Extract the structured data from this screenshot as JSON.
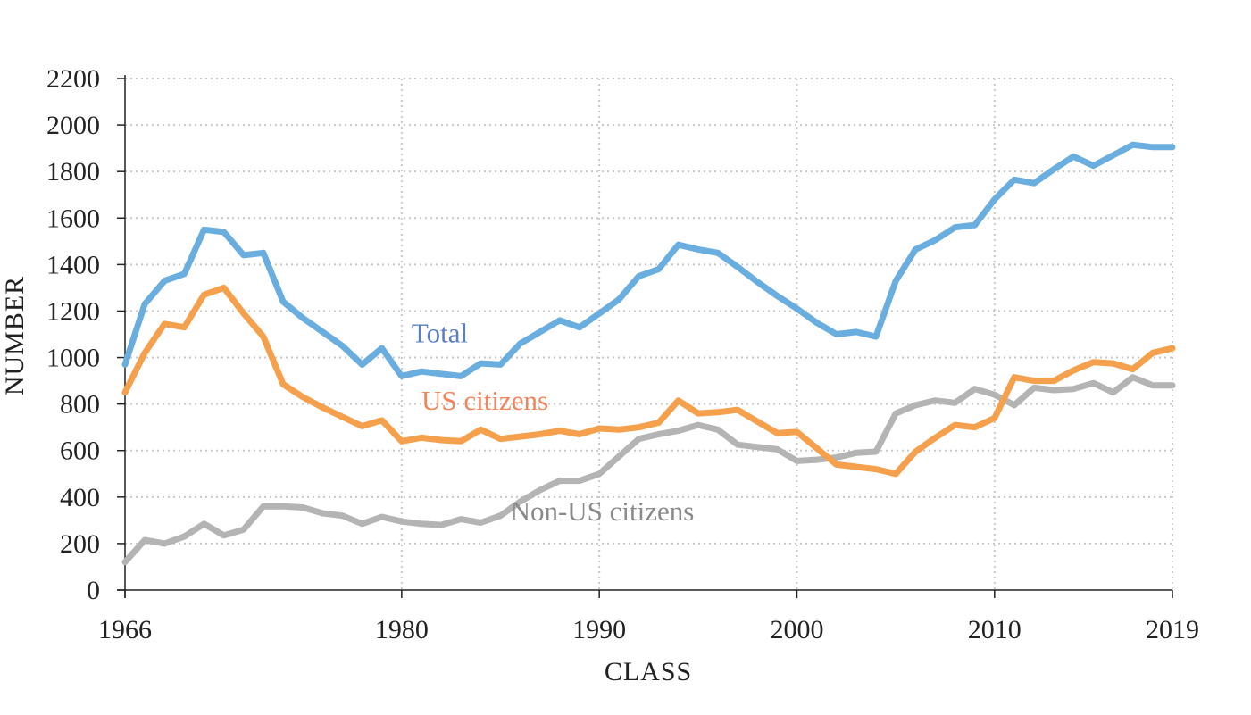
{
  "chart_data": {
    "type": "line",
    "title": "",
    "xlabel": "CLASS",
    "ylabel": "NUMBER",
    "xlim": [
      1966,
      2019
    ],
    "ylim": [
      0,
      2200
    ],
    "x_ticks": [
      1966,
      1980,
      1990,
      2000,
      2010,
      2019
    ],
    "y_ticks": [
      0,
      200,
      400,
      600,
      800,
      1000,
      1200,
      1400,
      1600,
      1800,
      2000,
      2200
    ],
    "grid": true,
    "x": [
      1966,
      1967,
      1968,
      1969,
      1970,
      1971,
      1972,
      1973,
      1974,
      1975,
      1976,
      1977,
      1978,
      1979,
      1980,
      1981,
      1982,
      1983,
      1984,
      1985,
      1986,
      1987,
      1988,
      1989,
      1990,
      1991,
      1992,
      1993,
      1994,
      1995,
      1996,
      1997,
      1998,
      1999,
      2000,
      2001,
      2002,
      2003,
      2004,
      2005,
      2006,
      2007,
      2008,
      2009,
      2010,
      2011,
      2012,
      2013,
      2014,
      2015,
      2016,
      2017,
      2018,
      2019
    ],
    "series": [
      {
        "name": "Total",
        "color": "#6aaee0",
        "label_color": "#5b7fc2",
        "values": [
          970,
          1230,
          1330,
          1360,
          1550,
          1540,
          1440,
          1450,
          1240,
          1170,
          1110,
          1050,
          970,
          1040,
          920,
          940,
          930,
          920,
          975,
          970,
          1060,
          1110,
          1160,
          1130,
          1190,
          1250,
          1350,
          1380,
          1485,
          1465,
          1450,
          1390,
          1325,
          1265,
          1210,
          1150,
          1100,
          1110,
          1090,
          1330,
          1465,
          1505,
          1560,
          1570,
          1680,
          1765,
          1750,
          1810,
          1865,
          1825,
          1870,
          1915,
          1905,
          1905
        ]
      },
      {
        "name": "US citizens",
        "color": "#f5a04c",
        "label_color": "#f0855a",
        "values": [
          850,
          1020,
          1145,
          1130,
          1270,
          1300,
          1190,
          1090,
          885,
          830,
          785,
          745,
          705,
          730,
          640,
          655,
          645,
          640,
          690,
          650,
          660,
          670,
          685,
          670,
          695,
          690,
          700,
          720,
          815,
          760,
          765,
          775,
          725,
          675,
          680,
          610,
          540,
          530,
          520,
          500,
          595,
          655,
          710,
          700,
          740,
          915,
          900,
          900,
          945,
          980,
          975,
          950,
          1020,
          1040
        ]
      },
      {
        "name": "Non-US citizens",
        "color": "#b4b4b4",
        "label_color": "#8a8a8a",
        "values": [
          120,
          215,
          200,
          230,
          285,
          235,
          260,
          360,
          360,
          355,
          330,
          320,
          285,
          315,
          295,
          285,
          280,
          305,
          290,
          320,
          380,
          430,
          470,
          470,
          500,
          575,
          650,
          670,
          685,
          710,
          690,
          625,
          615,
          605,
          555,
          560,
          570,
          590,
          595,
          760,
          795,
          815,
          805,
          865,
          840,
          795,
          870,
          860,
          865,
          890,
          850,
          915,
          880,
          880
        ]
      }
    ],
    "annotations": [
      {
        "series": "Total",
        "text": "Total"
      },
      {
        "series": "US citizens",
        "text": "US citizens"
      },
      {
        "series": "Non-US citizens",
        "text": "Non-US citizens"
      }
    ]
  }
}
